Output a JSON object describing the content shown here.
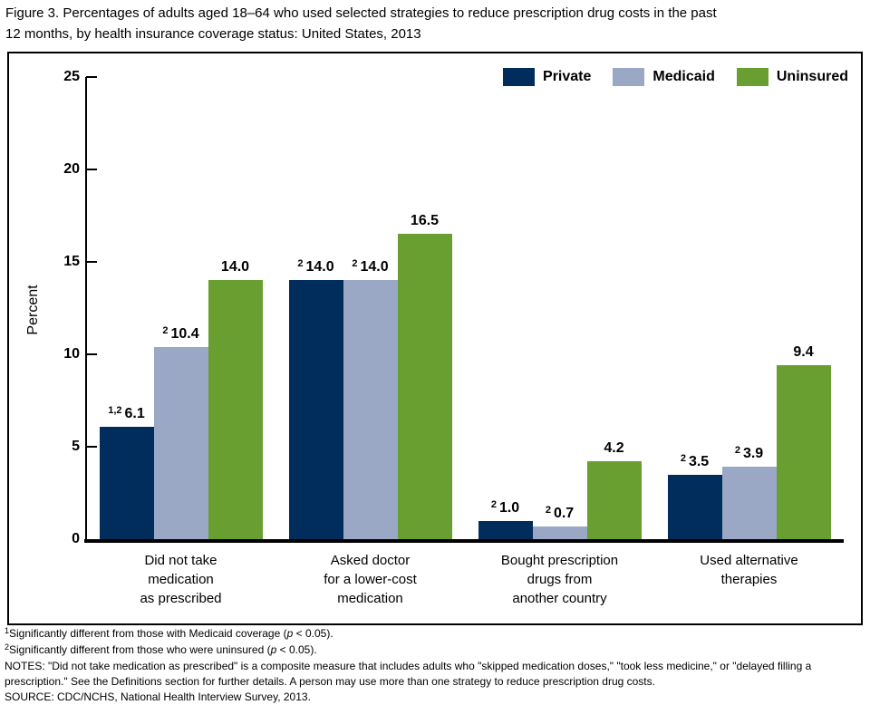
{
  "figure": {
    "title_lines": [
      "Figure 3. Percentages of adults aged 18–64 who used selected strategies to reduce prescription drug costs in the past",
      "12 months, by health insurance coverage status: United States, 2013"
    ]
  },
  "chart_data": {
    "type": "bar",
    "title": "Figure 3. Percentages of adults aged 18–64 who used selected strategies to reduce prescription drug costs in the past 12 months, by health insurance coverage status: United States, 2013",
    "xlabel": "",
    "ylabel": "Percent",
    "ylim": [
      0,
      25
    ],
    "yticks": [
      0,
      5,
      10,
      15,
      20,
      25
    ],
    "grid": false,
    "legend_position": "top-right",
    "categories": [
      [
        "Did not take",
        "medication",
        "as prescribed"
      ],
      [
        "Asked doctor",
        "for a lower-cost",
        "medication"
      ],
      [
        "Bought prescription",
        "drugs from",
        "another country"
      ],
      [
        "Used alternative",
        "therapies"
      ]
    ],
    "series": [
      {
        "name": "Private",
        "color": "#002d5c",
        "values": [
          6.1,
          14.0,
          1.0,
          3.5
        ],
        "sup_marks": [
          "1,2",
          "2",
          "2",
          "2"
        ]
      },
      {
        "name": "Medicaid",
        "color": "#9aa8c6",
        "values": [
          10.4,
          14.0,
          0.7,
          3.9
        ],
        "sup_marks": [
          "2",
          "2",
          "2",
          "2"
        ]
      },
      {
        "name": "Uninsured",
        "color": "#699e30",
        "values": [
          14.0,
          16.5,
          4.2,
          9.4
        ],
        "sup_marks": [
          "",
          "",
          "",
          ""
        ]
      }
    ]
  },
  "footnotes": [
    [
      {
        "t": "1",
        "s": "sup"
      },
      {
        "t": "Significantly different from those with Medicaid coverage (",
        "s": ""
      },
      {
        "t": "p",
        "s": "i"
      },
      {
        "t": " < 0.05).",
        "s": ""
      }
    ],
    [
      {
        "t": "2",
        "s": "sup"
      },
      {
        "t": "Significantly different from those who were uninsured (",
        "s": ""
      },
      {
        "t": "p",
        "s": "i"
      },
      {
        "t": " < 0.05).",
        "s": ""
      }
    ],
    [
      {
        "t": "NOTES: \"Did not take medication as prescribed\" is a composite measure that includes adults who \"skipped medication doses,\" \"took less medicine,\" or \"delayed filling a prescription.\" See the Definitions section for further details. A person may use more than one strategy to reduce prescription drug costs.",
        "s": ""
      }
    ],
    [
      {
        "t": "SOURCE: CDC/NCHS, National Health Interview Survey, 2013.",
        "s": ""
      }
    ]
  ]
}
